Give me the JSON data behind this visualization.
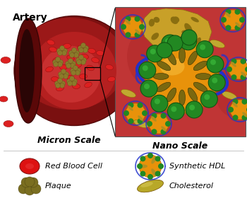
{
  "bg_color": "#ffffff",
  "title_artery": "Artery",
  "title_micron": "Micron Scale",
  "title_nano": "Nano Scale",
  "artery_outer_color": "#7a1010",
  "artery_wall_color": "#9b1818",
  "artery_inner_color": "#b52020",
  "artery_lumen_color": "#c83030",
  "artery_opening_dark": "#2a0505",
  "nano_bg_color": "#c03535",
  "nano_border_color": "#888888",
  "rbc_color": "#dd2020",
  "rbc_edge_color": "#991010",
  "plaque_color": "#8b7a2a",
  "plaque_edge_color": "#5a4e18",
  "plaque_nano_color": "#c8a028",
  "plaque_nano_dark": "#8a6e10",
  "hdl_gold": "#e8920a",
  "hdl_gold_light": "#f8c040",
  "hdl_gold_dark": "#b06808",
  "hdl_blue": "#2233cc",
  "hdl_green": "#228822",
  "hdl_green_light": "#44cc44",
  "hdl_chol_color": "#b09020",
  "chol_float_color": "#c0aa30",
  "chol_float_edge": "#906800",
  "legend_rbc_color": "#dd1111",
  "legend_plaque_color": "#7a6e20",
  "legend_chol_color": "#b8a828",
  "artery_label_fontsize": 10,
  "micron_label_fontsize": 9,
  "nano_label_fontsize": 9,
  "legend_label_fontsize": 8
}
